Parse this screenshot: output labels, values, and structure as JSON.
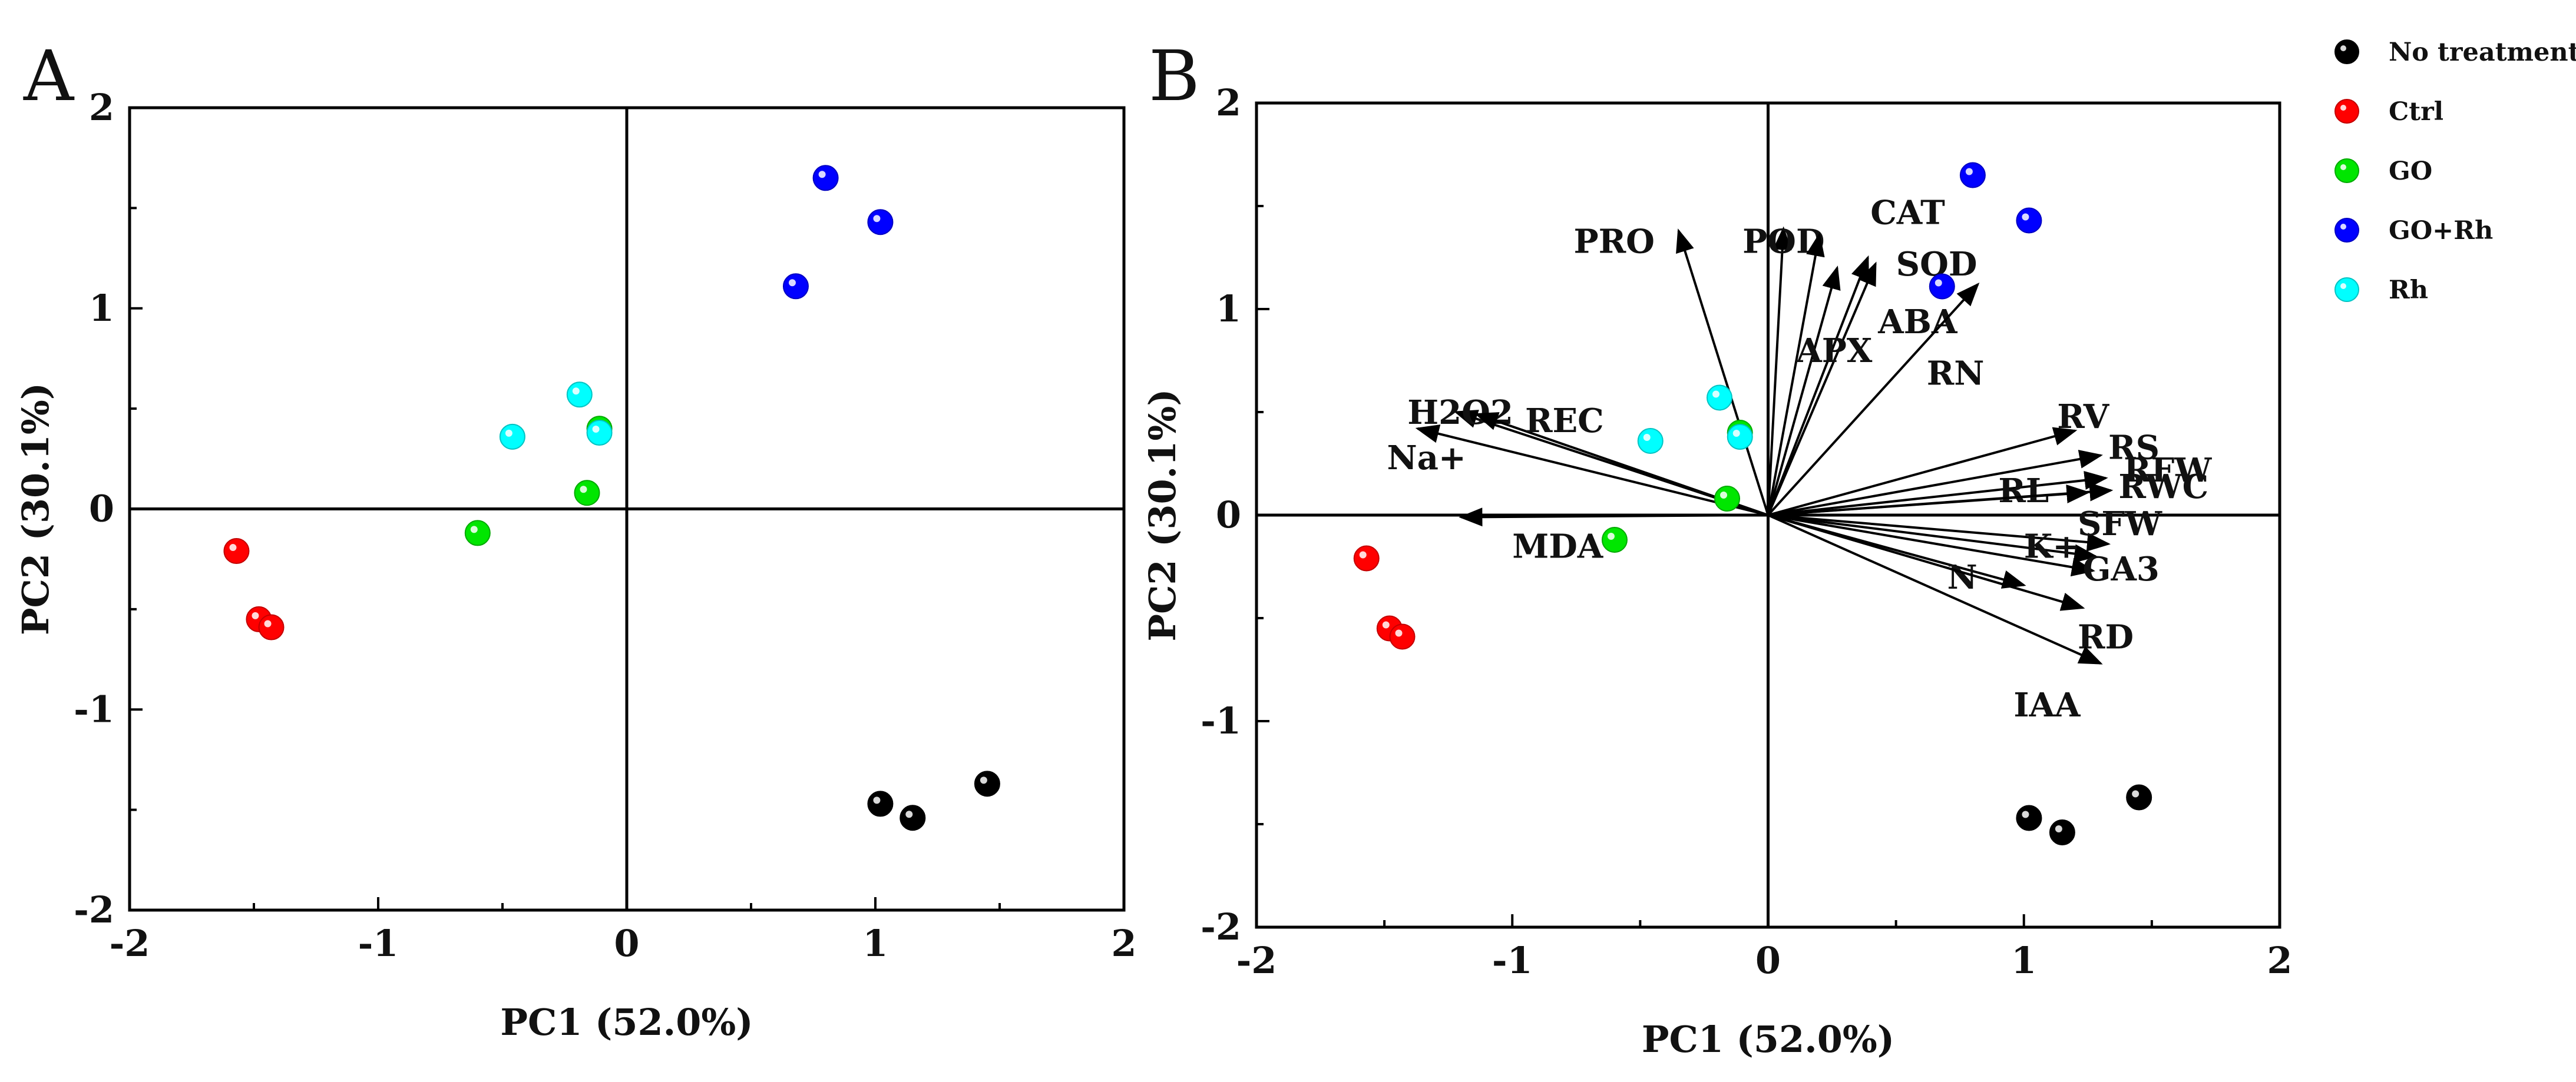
{
  "panels": {
    "a": {
      "letter": "A"
    },
    "b": {
      "letter": "B"
    }
  },
  "legend": {
    "entries": [
      {
        "label": "No treatment",
        "color": "#000000"
      },
      {
        "label": "Ctrl",
        "color": "#ff0000"
      },
      {
        "label": "GO",
        "color": "#00e600"
      },
      {
        "label": "GO+Rh",
        "color": "#0000ff"
      },
      {
        "label": "Rh",
        "color": "#00ffff"
      }
    ]
  },
  "chart_data": [
    {
      "id": "A",
      "type": "scatter",
      "title": "",
      "xlabel": "PC1 (52.0%)",
      "ylabel": "PC2 (30.1%)",
      "xlim": [
        -2,
        2
      ],
      "ylim": [
        -2,
        2
      ],
      "xticks": [
        -2,
        -1,
        0,
        1,
        2
      ],
      "yticks": [
        -2,
        -1,
        0,
        1,
        2
      ],
      "tick_labels": {
        "x": [
          "-2",
          "-1",
          "0",
          "1",
          "2"
        ],
        "y": [
          "-2",
          "-1",
          "0",
          "1",
          "2"
        ]
      },
      "series": [
        {
          "name": "No treatment",
          "points": [
            [
              1.02,
              -1.47
            ],
            [
              1.15,
              -1.54
            ],
            [
              1.45,
              -1.37
            ]
          ]
        },
        {
          "name": "Ctrl",
          "points": [
            [
              -1.57,
              -0.21
            ],
            [
              -1.48,
              -0.55
            ],
            [
              -1.43,
              -0.59
            ]
          ]
        },
        {
          "name": "GO",
          "points": [
            [
              -0.6,
              -0.12
            ],
            [
              -0.16,
              0.08
            ],
            [
              -0.11,
              0.4
            ]
          ]
        },
        {
          "name": "GO+Rh",
          "points": [
            [
              0.68,
              1.11
            ],
            [
              0.8,
              1.65
            ],
            [
              1.02,
              1.43
            ]
          ]
        },
        {
          "name": "Rh",
          "points": [
            [
              -0.46,
              0.36
            ],
            [
              -0.19,
              0.57
            ],
            [
              -0.11,
              0.38
            ]
          ]
        }
      ]
    },
    {
      "id": "B",
      "type": "biplot",
      "title": "",
      "xlabel": "PC1 (52.0%)",
      "ylabel": "PC2 (30.1%)",
      "xlim": [
        -2,
        2
      ],
      "ylim": [
        -2,
        2
      ],
      "xticks": [
        -2,
        -1,
        0,
        1,
        2
      ],
      "yticks": [
        -2,
        -1,
        0,
        1,
        2
      ],
      "tick_labels": {
        "x": [
          "-2",
          "-1",
          "0",
          "1",
          "2"
        ],
        "y": [
          "-2",
          "-1",
          "0",
          "1",
          "2"
        ]
      },
      "series": [
        {
          "name": "No treatment",
          "points": [
            [
              1.02,
              -1.47
            ],
            [
              1.15,
              -1.54
            ],
            [
              1.45,
              -1.37
            ]
          ]
        },
        {
          "name": "Ctrl",
          "points": [
            [
              -1.57,
              -0.21
            ],
            [
              -1.48,
              -0.55
            ],
            [
              -1.43,
              -0.59
            ]
          ]
        },
        {
          "name": "GO",
          "points": [
            [
              -0.6,
              -0.12
            ],
            [
              -0.16,
              0.08
            ],
            [
              -0.11,
              0.4
            ]
          ]
        },
        {
          "name": "GO+Rh",
          "points": [
            [
              0.68,
              1.11
            ],
            [
              0.8,
              1.65
            ],
            [
              1.02,
              1.43
            ]
          ]
        },
        {
          "name": "Rh",
          "points": [
            [
              -0.46,
              0.36
            ],
            [
              -0.19,
              0.57
            ],
            [
              -0.11,
              0.38
            ]
          ]
        }
      ],
      "loadings": [
        {
          "name": "PRO",
          "x": -0.35,
          "y": 1.38,
          "lx": -0.76,
          "ly": 1.33
        },
        {
          "name": "POD",
          "x": 0.06,
          "y": 1.39,
          "lx": -0.1,
          "ly": 1.33
        },
        {
          "name": "CAT",
          "x": 0.2,
          "y": 1.36,
          "lx": 0.4,
          "ly": 1.47
        },
        {
          "name": "SOD",
          "x": 0.39,
          "y": 1.25,
          "lx": 0.5,
          "ly": 1.22
        },
        {
          "name": "ABA",
          "x": 0.42,
          "y": 1.22,
          "lx": 0.43,
          "ly": 0.94
        },
        {
          "name": "APX",
          "x": 0.27,
          "y": 1.2,
          "lx": 0.11,
          "ly": 0.8
        },
        {
          "name": "RN",
          "x": 0.82,
          "y": 1.12,
          "lx": 0.62,
          "ly": 0.69
        },
        {
          "name": "H2O2",
          "x": -1.22,
          "y": 0.5,
          "lx": -1.41,
          "ly": 0.5
        },
        {
          "name": "REC",
          "x": -1.14,
          "y": 0.49,
          "lx": -0.95,
          "ly": 0.46
        },
        {
          "name": "Na+",
          "x": -1.37,
          "y": 0.42,
          "lx": -1.49,
          "ly": 0.28
        },
        {
          "name": "MDA",
          "x": -1.2,
          "y": -0.01,
          "lx": -1.0,
          "ly": -0.15
        },
        {
          "name": "RV",
          "x": 1.2,
          "y": 0.41,
          "lx": 1.13,
          "ly": 0.48
        },
        {
          "name": "RS",
          "x": 1.3,
          "y": 0.29,
          "lx": 1.33,
          "ly": 0.33
        },
        {
          "name": "RFW",
          "x": 1.32,
          "y": 0.18,
          "lx": 1.39,
          "ly": 0.22
        },
        {
          "name": "RL",
          "x": 1.25,
          "y": 0.11,
          "lx": 0.9,
          "ly": 0.12
        },
        {
          "name": "RWC",
          "x": 1.34,
          "y": 0.12,
          "lx": 1.37,
          "ly": 0.14
        },
        {
          "name": "SFW",
          "x": 1.33,
          "y": -0.14,
          "lx": 1.21,
          "ly": -0.04
        },
        {
          "name": "K+",
          "x": 1.28,
          "y": -0.2,
          "lx": 1.0,
          "ly": -0.15
        },
        {
          "name": "GA3",
          "x": 1.27,
          "y": -0.27,
          "lx": 1.23,
          "ly": -0.26
        },
        {
          "name": "N",
          "x": 1.0,
          "y": -0.34,
          "lx": 0.7,
          "ly": -0.3
        },
        {
          "name": "RD",
          "x": 1.23,
          "y": -0.45,
          "lx": 1.21,
          "ly": -0.59
        },
        {
          "name": "IAA",
          "x": 1.3,
          "y": -0.72,
          "lx": 0.96,
          "ly": -0.92
        }
      ]
    }
  ]
}
